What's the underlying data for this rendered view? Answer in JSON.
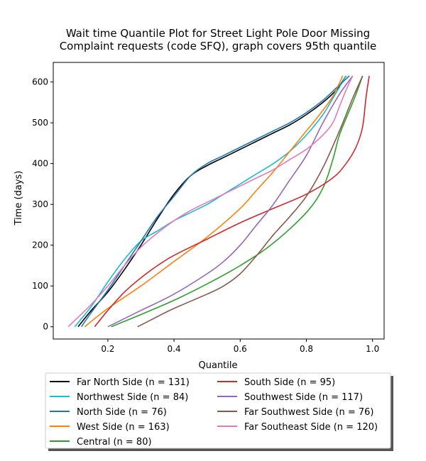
{
  "chart_data": {
    "type": "line",
    "title_lines": [
      "Wait time Quantile Plot for Street Light Pole Door Missing",
      "Complaint  requests (code SFQ), graph covers 95th quantile"
    ],
    "xlabel": "Quantile",
    "ylabel": "Time (days)",
    "xlim": [
      0.035,
      1.035
    ],
    "ylim": [
      -30,
      648
    ],
    "xticks": [
      0.2,
      0.4,
      0.6,
      0.8,
      1.0
    ],
    "xtick_labels": [
      "0.2",
      "0.4",
      "0.6",
      "0.8",
      "1.0"
    ],
    "yticks": [
      0,
      100,
      200,
      300,
      400,
      500,
      600
    ],
    "ytick_labels": [
      "0",
      "100",
      "200",
      "300",
      "400",
      "500",
      "600"
    ],
    "grid": false,
    "legend_placement": "below plot, two columns",
    "series": [
      {
        "name": "Far North Side (n = 131)",
        "color": "#000000",
        "points": [
          [
            0.11,
            0
          ],
          [
            0.15,
            40
          ],
          [
            0.2,
            85
          ],
          [
            0.25,
            140
          ],
          [
            0.3,
            200
          ],
          [
            0.35,
            265
          ],
          [
            0.4,
            325
          ],
          [
            0.45,
            370
          ],
          [
            0.5,
            395
          ],
          [
            0.55,
            415
          ],
          [
            0.6,
            435
          ],
          [
            0.65,
            455
          ],
          [
            0.7,
            475
          ],
          [
            0.75,
            495
          ],
          [
            0.8,
            520
          ],
          [
            0.85,
            550
          ],
          [
            0.89,
            580
          ],
          [
            0.92,
            615
          ]
        ]
      },
      {
        "name": "Northwest Side (n = 84)",
        "color": "#17becf",
        "points": [
          [
            0.1,
            0
          ],
          [
            0.15,
            50
          ],
          [
            0.2,
            110
          ],
          [
            0.25,
            165
          ],
          [
            0.3,
            210
          ],
          [
            0.35,
            235
          ],
          [
            0.4,
            260
          ],
          [
            0.45,
            280
          ],
          [
            0.5,
            300
          ],
          [
            0.55,
            325
          ],
          [
            0.6,
            350
          ],
          [
            0.65,
            375
          ],
          [
            0.7,
            400
          ],
          [
            0.75,
            430
          ],
          [
            0.8,
            470
          ],
          [
            0.85,
            520
          ],
          [
            0.88,
            560
          ],
          [
            0.92,
            615
          ]
        ]
      },
      {
        "name": "North Side (n = 76)",
        "color": "#1f77b4",
        "points": [
          [
            0.12,
            0
          ],
          [
            0.15,
            35
          ],
          [
            0.2,
            90
          ],
          [
            0.25,
            150
          ],
          [
            0.3,
            210
          ],
          [
            0.35,
            270
          ],
          [
            0.4,
            320
          ],
          [
            0.45,
            370
          ],
          [
            0.5,
            400
          ],
          [
            0.55,
            420
          ],
          [
            0.6,
            440
          ],
          [
            0.65,
            460
          ],
          [
            0.7,
            480
          ],
          [
            0.75,
            500
          ],
          [
            0.8,
            525
          ],
          [
            0.85,
            555
          ],
          [
            0.89,
            585
          ],
          [
            0.93,
            615
          ]
        ]
      },
      {
        "name": "West Side (n = 163)",
        "color": "#ff7f0e",
        "points": [
          [
            0.13,
            0
          ],
          [
            0.2,
            45
          ],
          [
            0.3,
            100
          ],
          [
            0.4,
            160
          ],
          [
            0.5,
            220
          ],
          [
            0.6,
            290
          ],
          [
            0.65,
            335
          ],
          [
            0.7,
            380
          ],
          [
            0.75,
            430
          ],
          [
            0.8,
            480
          ],
          [
            0.84,
            520
          ],
          [
            0.88,
            565
          ],
          [
            0.91,
            615
          ]
        ]
      },
      {
        "name": "Central (n = 80)",
        "color": "#2ca02c",
        "points": [
          [
            0.21,
            0
          ],
          [
            0.3,
            30
          ],
          [
            0.4,
            65
          ],
          [
            0.5,
            105
          ],
          [
            0.6,
            150
          ],
          [
            0.7,
            205
          ],
          [
            0.8,
            280
          ],
          [
            0.85,
            340
          ],
          [
            0.88,
            410
          ],
          [
            0.9,
            470
          ],
          [
            0.93,
            530
          ],
          [
            0.95,
            570
          ],
          [
            0.97,
            615
          ]
        ]
      },
      {
        "name": "South Side (n = 95)",
        "color": "#d62728",
        "points": [
          [
            0.16,
            0
          ],
          [
            0.2,
            40
          ],
          [
            0.25,
            85
          ],
          [
            0.3,
            120
          ],
          [
            0.35,
            150
          ],
          [
            0.4,
            175
          ],
          [
            0.5,
            215
          ],
          [
            0.6,
            255
          ],
          [
            0.7,
            290
          ],
          [
            0.8,
            325
          ],
          [
            0.88,
            365
          ],
          [
            0.92,
            400
          ],
          [
            0.95,
            440
          ],
          [
            0.97,
            490
          ],
          [
            0.98,
            560
          ],
          [
            0.99,
            615
          ]
        ]
      },
      {
        "name": "Southwest Side (n = 117)",
        "color": "#9467bd",
        "points": [
          [
            0.2,
            0
          ],
          [
            0.25,
            20
          ],
          [
            0.3,
            40
          ],
          [
            0.4,
            80
          ],
          [
            0.5,
            130
          ],
          [
            0.55,
            160
          ],
          [
            0.6,
            200
          ],
          [
            0.65,
            250
          ],
          [
            0.7,
            300
          ],
          [
            0.75,
            360
          ],
          [
            0.8,
            420
          ],
          [
            0.85,
            500
          ],
          [
            0.9,
            570
          ],
          [
            0.94,
            615
          ]
        ]
      },
      {
        "name": "Far Southwest Side (n = 76)",
        "color": "#8c564b",
        "points": [
          [
            0.29,
            0
          ],
          [
            0.35,
            25
          ],
          [
            0.4,
            45
          ],
          [
            0.5,
            80
          ],
          [
            0.55,
            100
          ],
          [
            0.6,
            130
          ],
          [
            0.65,
            175
          ],
          [
            0.7,
            225
          ],
          [
            0.75,
            270
          ],
          [
            0.8,
            320
          ],
          [
            0.85,
            390
          ],
          [
            0.9,
            480
          ],
          [
            0.94,
            560
          ],
          [
            0.97,
            615
          ]
        ]
      },
      {
        "name": "Far Southeast Side (n = 120)",
        "color": "#e377c2",
        "points": [
          [
            0.08,
            0
          ],
          [
            0.15,
            55
          ],
          [
            0.2,
            100
          ],
          [
            0.25,
            150
          ],
          [
            0.3,
            195
          ],
          [
            0.35,
            230
          ],
          [
            0.4,
            260
          ],
          [
            0.45,
            285
          ],
          [
            0.5,
            305
          ],
          [
            0.55,
            325
          ],
          [
            0.6,
            345
          ],
          [
            0.65,
            365
          ],
          [
            0.7,
            385
          ],
          [
            0.75,
            410
          ],
          [
            0.8,
            435
          ],
          [
            0.85,
            470
          ],
          [
            0.88,
            500
          ],
          [
            0.9,
            540
          ],
          [
            0.92,
            580
          ],
          [
            0.94,
            615
          ]
        ]
      }
    ]
  }
}
